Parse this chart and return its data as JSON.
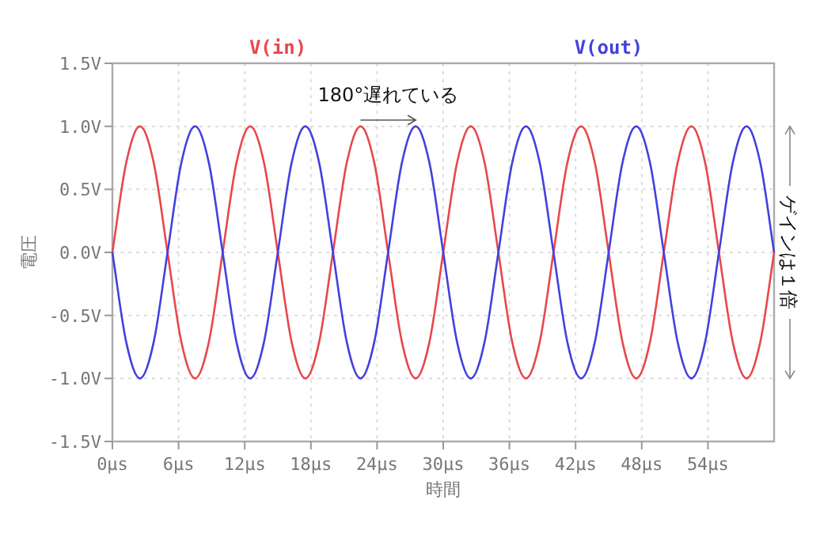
{
  "chart_data": {
    "type": "line",
    "xlabel": "時間",
    "ylabel": "電圧",
    "x": [
      0,
      1.25,
      2.5,
      3.75,
      5,
      6.25,
      7.5,
      8.75,
      10,
      11.25,
      12.5,
      13.75,
      15,
      16.25,
      17.5,
      18.75,
      20,
      21.25,
      22.5,
      23.75,
      25,
      26.25,
      27.5,
      28.75,
      30,
      31.25,
      32.5,
      33.75,
      35,
      36.25,
      37.5,
      38.75,
      40,
      41.25,
      42.5,
      43.75,
      45,
      46.25,
      47.5,
      48.75,
      50,
      51.25,
      52.5,
      53.75,
      55,
      56.25,
      57.5,
      58.75,
      60
    ],
    "series": [
      {
        "name": "V(in)",
        "color": "#e8474c",
        "values": [
          0,
          0.71,
          1,
          0.71,
          0,
          -0.71,
          -1,
          -0.71,
          0,
          0.71,
          1,
          0.71,
          0,
          -0.71,
          -1,
          -0.71,
          0,
          0.71,
          1,
          0.71,
          0,
          -0.71,
          -1,
          -0.71,
          0,
          0.71,
          1,
          0.71,
          0,
          -0.71,
          -1,
          -0.71,
          0,
          0.71,
          1,
          0.71,
          0,
          -0.71,
          -1,
          -0.71,
          0,
          0.71,
          1,
          0.71,
          0,
          -0.71,
          -1,
          -0.71,
          0
        ]
      },
      {
        "name": "V(out)",
        "color": "#4141df",
        "values": [
          0,
          -0.71,
          -1,
          -0.71,
          0,
          0.71,
          1,
          0.71,
          0,
          -0.71,
          -1,
          -0.71,
          0,
          0.71,
          1,
          0.71,
          0,
          -0.71,
          -1,
          -0.71,
          0,
          0.71,
          1,
          0.71,
          0,
          -0.71,
          -1,
          -0.71,
          0,
          0.71,
          1,
          0.71,
          0,
          -0.71,
          -1,
          -0.71,
          0,
          0.71,
          1,
          0.71,
          0,
          -0.71,
          -1,
          -0.71,
          0,
          0.71,
          1,
          0.71,
          0
        ]
      }
    ],
    "xlim": [
      0,
      60
    ],
    "xticks": [
      {
        "value": 0,
        "label": "0µs"
      },
      {
        "value": 6,
        "label": "6µs"
      },
      {
        "value": 12,
        "label": "12µs"
      },
      {
        "value": 18,
        "label": "18µs"
      },
      {
        "value": 24,
        "label": "24µs"
      },
      {
        "value": 30,
        "label": "30µs"
      },
      {
        "value": 36,
        "label": "36µs"
      },
      {
        "value": 42,
        "label": "42µs"
      },
      {
        "value": 48,
        "label": "48µs"
      },
      {
        "value": 54,
        "label": "54µs"
      }
    ],
    "ylim": [
      -1.5,
      1.5
    ],
    "yticks": [
      {
        "value": -1.5,
        "label": "-1.5V"
      },
      {
        "value": -1,
        "label": "-1.0V"
      },
      {
        "value": -0.5,
        "label": "-0.5V"
      },
      {
        "value": 0,
        "label": "0.0V"
      },
      {
        "value": 0.5,
        "label": "0.5V"
      },
      {
        "value": 1,
        "label": "1.0V"
      },
      {
        "value": 1.5,
        "label": "1.5V"
      }
    ],
    "grid": true,
    "legend": "top",
    "marker": "none",
    "line_style": "solid",
    "annotations": [
      {
        "text": "180°遅れている",
        "x": 22.5,
        "y": 1.05
      },
      "ゲインは１倍"
    ]
  }
}
